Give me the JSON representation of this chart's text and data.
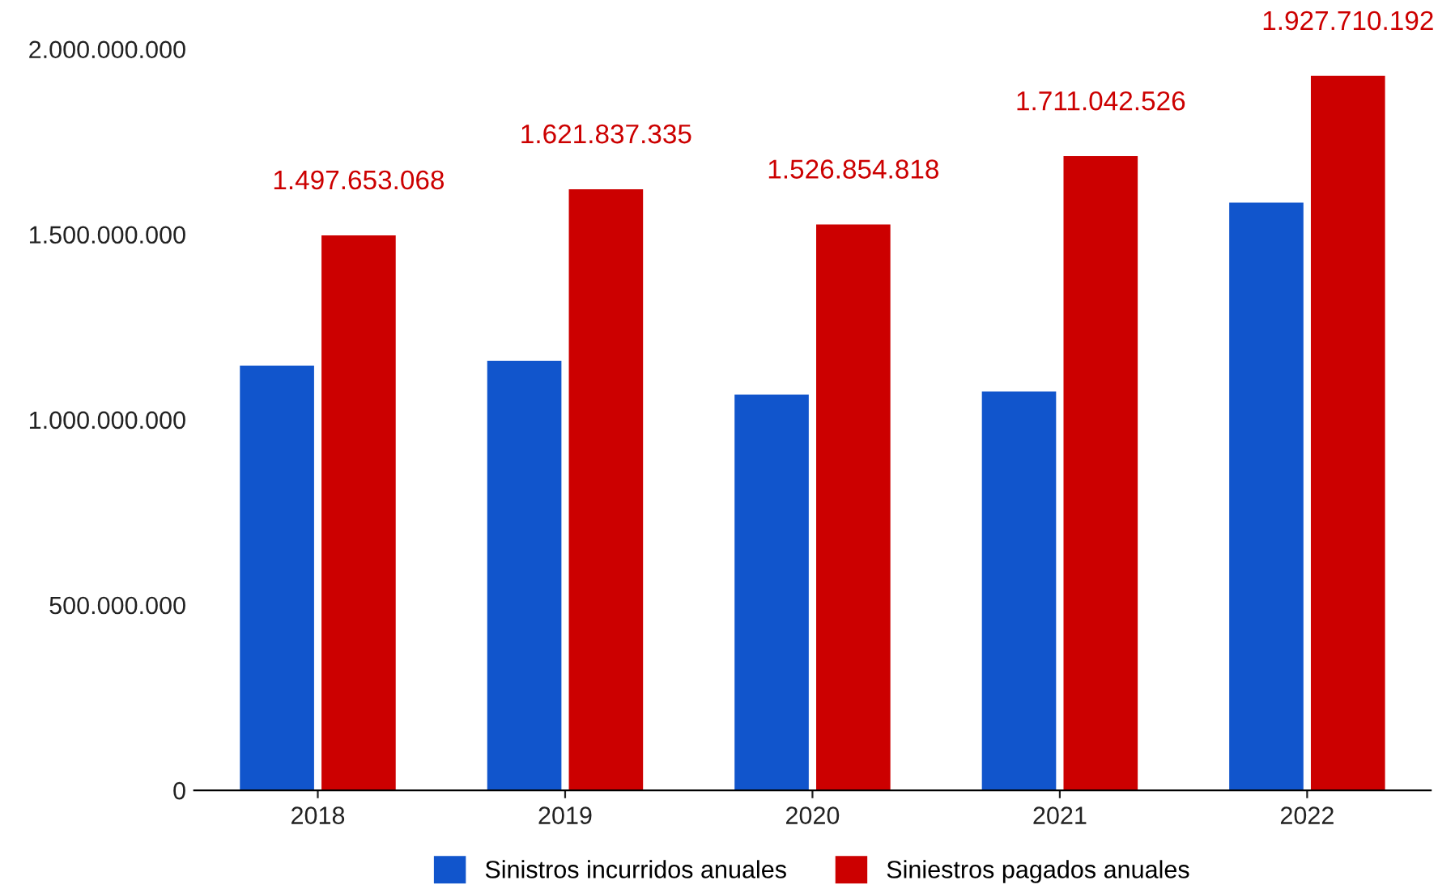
{
  "chart_data": {
    "type": "bar",
    "categories": [
      "2018",
      "2019",
      "2020",
      "2021",
      "2022"
    ],
    "series": [
      {
        "name": "Sinistros incurridos anuales",
        "color": "#1155cc",
        "values": [
          1146000000,
          1159000000,
          1068000000,
          1076000000,
          1586000000
        ]
      },
      {
        "name": "Siniestros pagados anuales",
        "color": "#cc0000",
        "values": [
          1497653068,
          1621837335,
          1526854818,
          1711042526,
          1927710192
        ],
        "value_labels": [
          "1.497.653.068",
          "1.621.837.335",
          "1.526.854.818",
          "1.711.042.526",
          "1.927.710.192"
        ]
      }
    ],
    "ylim": [
      0,
      2000000000
    ],
    "yticks": [
      0,
      {
        "value": 500000000,
        "label": "500.000.000"
      },
      {
        "value": 1000000000,
        "label": "1.000.000.000"
      },
      {
        "value": 1500000000,
        "label": "1.500.000.000"
      },
      {
        "value": 2000000000,
        "label": "2.000.000.000"
      }
    ],
    "grid": false,
    "legend": "bottom"
  }
}
